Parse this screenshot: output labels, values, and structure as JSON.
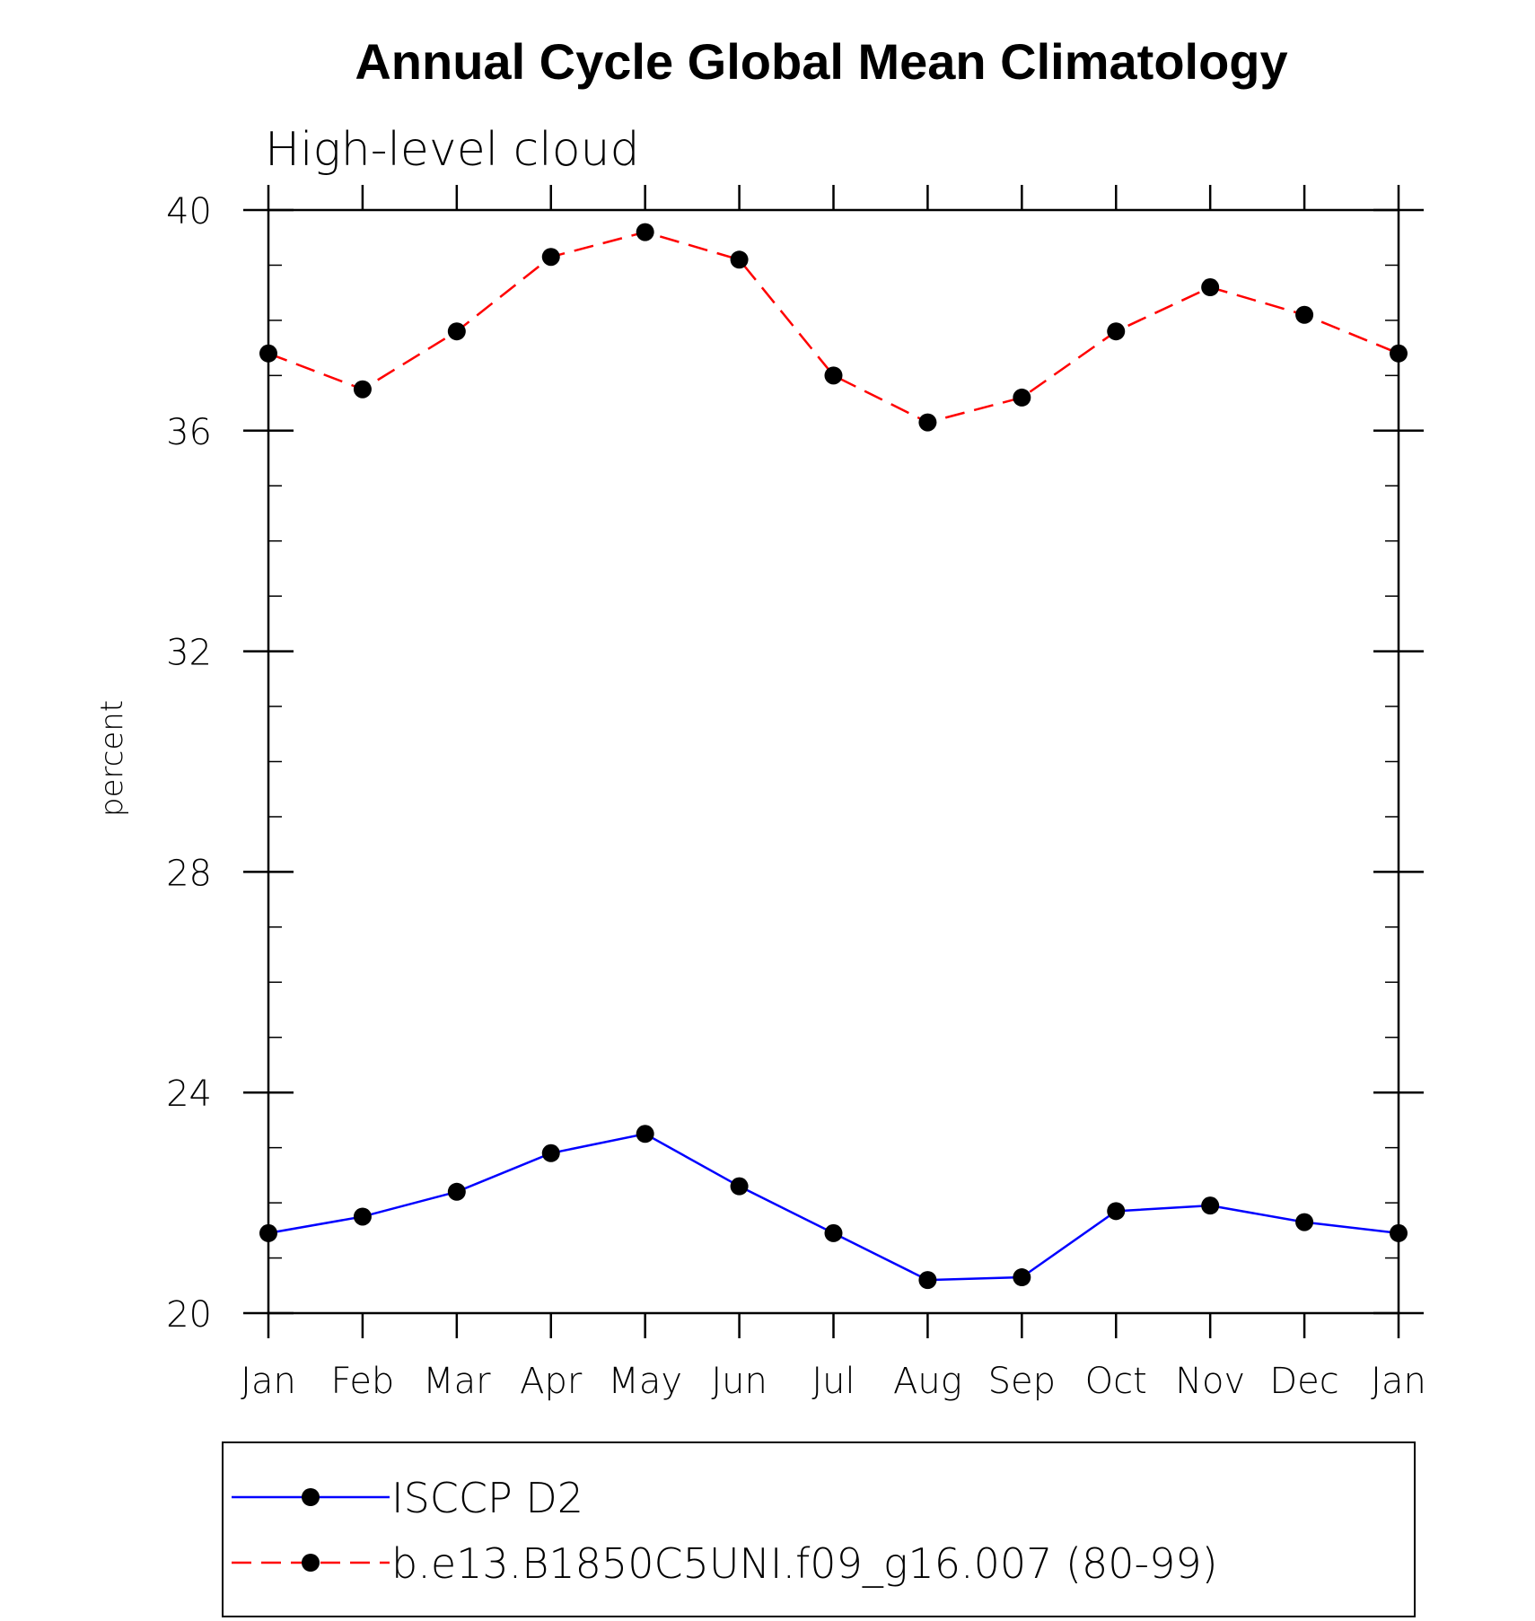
{
  "chart_data": {
    "type": "line",
    "title": "Annual Cycle Global Mean Climatology",
    "subtitle": "High-level cloud",
    "ylabel": "percent",
    "xlabel": "",
    "categories": [
      "Jan",
      "Feb",
      "Mar",
      "Apr",
      "May",
      "Jun",
      "Jul",
      "Aug",
      "Sep",
      "Oct",
      "Nov",
      "Dec",
      "Jan"
    ],
    "ylim": [
      20,
      40
    ],
    "yticks": [
      "20",
      "24",
      "28",
      "32",
      "36",
      "40"
    ],
    "grid": false,
    "legend_position": "bottom",
    "series": [
      {
        "name": "ISCCP D2",
        "color": "#0000ff",
        "line_style": "solid",
        "marker": "filled-circle",
        "values": [
          21.45,
          21.75,
          22.2,
          22.9,
          23.25,
          22.3,
          21.45,
          20.6,
          20.65,
          21.85,
          21.95,
          21.65,
          21.45
        ]
      },
      {
        "name": "b.e13.B1850C5UNI.f09_g16.007 (80-99)",
        "color": "#ff0000",
        "line_style": "dashed",
        "marker": "filled-circle",
        "values": [
          37.4,
          36.75,
          37.8,
          39.15,
          39.6,
          39.1,
          37.0,
          36.15,
          36.6,
          37.8,
          38.6,
          38.1,
          37.4
        ]
      }
    ]
  }
}
